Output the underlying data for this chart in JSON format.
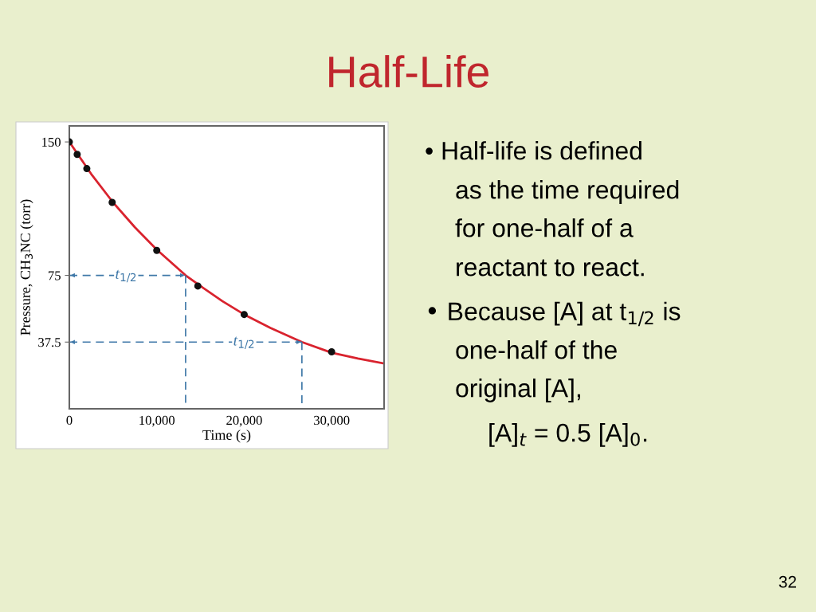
{
  "chart_data": {
    "type": "scatter",
    "title": "Half-Life",
    "xlabel": "Time (s)",
    "ylabel": "Pressure, CH$_{3}$NC (torr)",
    "xlim": [
      0,
      36000
    ],
    "ylim": [
      0,
      159
    ],
    "xticks": [
      0,
      {
        "value": 10000,
        "label": "10,000"
      },
      {
        "value": 20000,
        "label": "20,000"
      },
      {
        "value": 30000,
        "label": "30,000"
      }
    ],
    "yticks": [
      37.5,
      75,
      150
    ],
    "grid": false,
    "legend": false,
    "series": [
      {
        "type": "line",
        "color": "#d9232e",
        "marker": "none",
        "line_style": "solid",
        "x": [
          0,
          2500,
          5000,
          7500,
          10000,
          13300,
          15000,
          17500,
          20000,
          23000,
          26600,
          30000,
          33000,
          36000
        ],
        "values": [
          150,
          132,
          116,
          102,
          89.5,
          75,
          69,
          60.5,
          53,
          45.5,
          37.5,
          31.5,
          28.3,
          25.5
        ]
      },
      {
        "color": "#111111",
        "marker": "circle",
        "x": [
          0,
          900,
          2000,
          4900,
          10000,
          14700,
          20000,
          30000
        ],
        "values": [
          150,
          143,
          135,
          116,
          89,
          69,
          53,
          32
        ]
      },
      {
        "type": "line",
        "color": "#3f78a8",
        "marker": "none",
        "line_style": "dashed",
        "x": [
          0,
          13300
        ],
        "values": [
          75,
          75
        ]
      },
      {
        "type": "line",
        "color": "#3f78a8",
        "marker": "none",
        "line_style": "dashed",
        "x": [
          13300,
          13300
        ],
        "values": [
          75,
          0
        ]
      },
      {
        "type": "line",
        "color": "#3f78a8",
        "marker": "none",
        "line_style": "dashed",
        "x": [
          0,
          26600
        ],
        "values": [
          37.5,
          37.5
        ]
      },
      {
        "type": "line",
        "color": "#3f78a8",
        "marker": "none",
        "line_style": "dashed",
        "x": [
          26600,
          26600
        ],
        "values": [
          37.5,
          0
        ]
      }
    ],
    "annotations": [
      {
        "text": "t$_{1/2}$",
        "x": 6500,
        "y": 75
      },
      {
        "text": "t$_{1/2}$",
        "x": 20000,
        "y": 37.5
      },
      "• Half-life is defined",
      "as the time required",
      "for one-half of a",
      "reactant to react.",
      "• Because [A] at t$_{1/2}$ is",
      "one-half of the",
      "original [A],",
      "[A]$_{t}$ = 0.5 [A]$_{0}$.",
      "32"
    ]
  }
}
